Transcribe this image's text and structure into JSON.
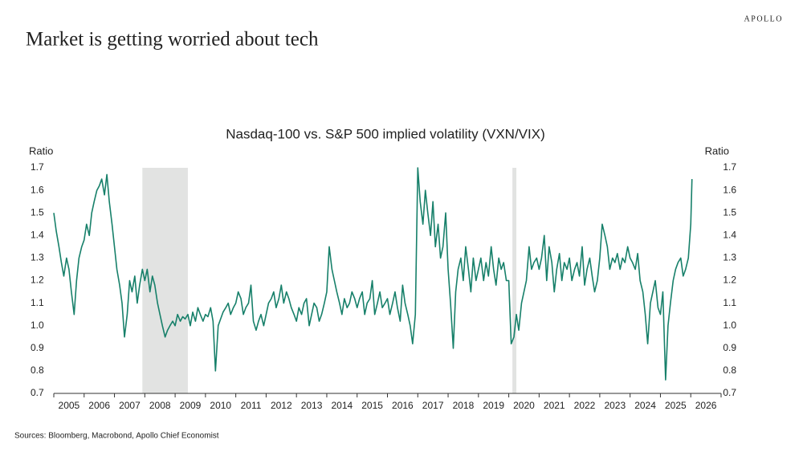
{
  "brand": "APOLLO",
  "headline": "Market is getting worried about tech",
  "source": "Sources: Bloomberg, Macrobond, Apollo Chief Economist",
  "chart_data": {
    "type": "line",
    "title": "Nasdaq-100 vs. S&P 500 implied volatility (VXN/VIX)",
    "y_label": "Ratio",
    "y2_label": "Ratio",
    "color": "#17806a",
    "grid": false,
    "xlim": [
      2005,
      2027
    ],
    "xticks": [
      2005,
      2006,
      2007,
      2008,
      2009,
      2010,
      2011,
      2012,
      2013,
      2014,
      2015,
      2016,
      2017,
      2018,
      2019,
      2020,
      2021,
      2022,
      2023,
      2024,
      2025,
      2026
    ],
    "ylim": [
      0.7,
      1.7
    ],
    "yticks": [
      0.7,
      0.8,
      0.9,
      {
        "value": 1,
        "label": "1.0"
      },
      1.1,
      1.2,
      1.3,
      1.4,
      1.5,
      1.6,
      1.7
    ],
    "y2lim": [
      0.7,
      1.7
    ],
    "y2ticks": [
      0.7,
      0.8,
      0.9,
      {
        "value": 1,
        "label": "1.0"
      },
      1.1,
      1.2,
      1.3,
      1.4,
      1.5,
      1.6,
      1.7
    ],
    "shaded": [
      [
        2007.92,
        2009.42
      ],
      [
        2020.12,
        2020.25
      ]
    ],
    "shaded_color": "#e2e3e2",
    "x": [
      2005.0,
      2005.08,
      2005.17,
      2005.25,
      2005.33,
      2005.42,
      2005.5,
      2005.58,
      2005.67,
      2005.75,
      2005.83,
      2005.92,
      2006.0,
      2006.08,
      2006.17,
      2006.25,
      2006.33,
      2006.42,
      2006.5,
      2006.58,
      2006.67,
      2006.75,
      2006.83,
      2006.92,
      2007.0,
      2007.08,
      2007.17,
      2007.25,
      2007.33,
      2007.42,
      2007.5,
      2007.58,
      2007.67,
      2007.75,
      2007.83,
      2007.92,
      2008.0,
      2008.08,
      2008.17,
      2008.25,
      2008.33,
      2008.42,
      2008.5,
      2008.58,
      2008.67,
      2008.75,
      2008.83,
      2008.92,
      2009.0,
      2009.08,
      2009.17,
      2009.25,
      2009.33,
      2009.42,
      2009.5,
      2009.58,
      2009.67,
      2009.75,
      2009.83,
      2009.92,
      2010.0,
      2010.08,
      2010.17,
      2010.25,
      2010.33,
      2010.42,
      2010.5,
      2010.58,
      2010.67,
      2010.75,
      2010.83,
      2010.92,
      2011.0,
      2011.08,
      2011.17,
      2011.25,
      2011.33,
      2011.42,
      2011.5,
      2011.58,
      2011.67,
      2011.75,
      2011.83,
      2011.92,
      2012.0,
      2012.08,
      2012.17,
      2012.25,
      2012.33,
      2012.42,
      2012.5,
      2012.58,
      2012.67,
      2012.75,
      2012.83,
      2012.92,
      2013.0,
      2013.08,
      2013.17,
      2013.25,
      2013.33,
      2013.42,
      2013.5,
      2013.58,
      2013.67,
      2013.75,
      2013.83,
      2013.92,
      2014.0,
      2014.08,
      2014.17,
      2014.25,
      2014.33,
      2014.42,
      2014.5,
      2014.58,
      2014.67,
      2014.75,
      2014.83,
      2014.92,
      2015.0,
      2015.08,
      2015.17,
      2015.25,
      2015.33,
      2015.42,
      2015.5,
      2015.58,
      2015.67,
      2015.75,
      2015.83,
      2015.92,
      2016.0,
      2016.08,
      2016.17,
      2016.25,
      2016.33,
      2016.42,
      2016.5,
      2016.58,
      2016.67,
      2016.75,
      2016.83,
      2016.92,
      2017.0,
      2017.08,
      2017.17,
      2017.25,
      2017.33,
      2017.42,
      2017.5,
      2017.58,
      2017.67,
      2017.75,
      2017.83,
      2017.92,
      2018.0,
      2018.08,
      2018.17,
      2018.25,
      2018.33,
      2018.42,
      2018.5,
      2018.58,
      2018.67,
      2018.75,
      2018.83,
      2018.92,
      2019.0,
      2019.08,
      2019.17,
      2019.25,
      2019.33,
      2019.42,
      2019.5,
      2019.58,
      2019.67,
      2019.75,
      2019.83,
      2019.92,
      2020.0,
      2020.08,
      2020.17,
      2020.25,
      2020.33,
      2020.42,
      2020.5,
      2020.58,
      2020.67,
      2020.75,
      2020.83,
      2020.92,
      2021.0,
      2021.08,
      2021.17,
      2021.25,
      2021.33,
      2021.42,
      2021.5,
      2021.58,
      2021.67,
      2021.75,
      2021.83,
      2021.92,
      2022.0,
      2022.08,
      2022.17,
      2022.25,
      2022.33,
      2022.42,
      2022.5,
      2022.58,
      2022.67,
      2022.75,
      2022.83,
      2022.92,
      2023.0,
      2023.08,
      2023.17,
      2023.25,
      2023.33,
      2023.42,
      2023.5,
      2023.58,
      2023.67,
      2023.75,
      2023.83,
      2023.92,
      2024.0,
      2024.08,
      2024.17,
      2024.25,
      2024.33,
      2024.42,
      2024.5,
      2024.58,
      2024.67,
      2024.75,
      2024.83,
      2024.92,
      2025.0,
      2025.08,
      2025.17,
      2025.25,
      2025.33,
      2025.42,
      2025.5,
      2025.58,
      2025.67,
      2025.75,
      2025.83,
      2025.92,
      2026.0,
      2026.04
    ],
    "values": [
      1.5,
      1.42,
      1.35,
      1.28,
      1.22,
      1.3,
      1.25,
      1.15,
      1.05,
      1.2,
      1.3,
      1.35,
      1.38,
      1.45,
      1.4,
      1.5,
      1.55,
      1.6,
      1.62,
      1.65,
      1.58,
      1.67,
      1.55,
      1.45,
      1.35,
      1.25,
      1.18,
      1.1,
      0.95,
      1.05,
      1.2,
      1.15,
      1.22,
      1.1,
      1.18,
      1.25,
      1.2,
      1.25,
      1.15,
      1.22,
      1.18,
      1.1,
      1.05,
      1.0,
      0.95,
      0.98,
      1.0,
      1.02,
      1.0,
      1.05,
      1.02,
      1.04,
      1.03,
      1.05,
      1.0,
      1.06,
      1.02,
      1.08,
      1.05,
      1.02,
      1.05,
      1.04,
      1.08,
      1.02,
      0.8,
      1.0,
      1.03,
      1.06,
      1.08,
      1.1,
      1.05,
      1.08,
      1.1,
      1.15,
      1.12,
      1.05,
      1.08,
      1.1,
      1.18,
      1.02,
      0.98,
      1.02,
      1.05,
      1.0,
      1.05,
      1.1,
      1.12,
      1.15,
      1.08,
      1.12,
      1.18,
      1.1,
      1.15,
      1.12,
      1.08,
      1.05,
      1.02,
      1.08,
      1.05,
      1.1,
      1.12,
      1.0,
      1.05,
      1.1,
      1.08,
      1.02,
      1.05,
      1.1,
      1.15,
      1.35,
      1.25,
      1.2,
      1.15,
      1.1,
      1.05,
      1.12,
      1.08,
      1.1,
      1.15,
      1.12,
      1.08,
      1.12,
      1.15,
      1.05,
      1.1,
      1.12,
      1.2,
      1.05,
      1.1,
      1.15,
      1.08,
      1.1,
      1.12,
      1.05,
      1.1,
      1.15,
      1.08,
      1.02,
      1.18,
      1.1,
      1.05,
      1.0,
      0.92,
      1.05,
      1.7,
      1.55,
      1.45,
      1.6,
      1.5,
      1.4,
      1.55,
      1.35,
      1.45,
      1.3,
      1.35,
      1.5,
      1.25,
      1.1,
      0.9,
      1.15,
      1.25,
      1.3,
      1.2,
      1.35,
      1.25,
      1.15,
      1.3,
      1.2,
      1.25,
      1.3,
      1.2,
      1.28,
      1.22,
      1.35,
      1.25,
      1.18,
      1.3,
      1.25,
      1.28,
      1.2,
      1.2,
      0.92,
      0.95,
      1.05,
      0.98,
      1.1,
      1.15,
      1.2,
      1.35,
      1.25,
      1.28,
      1.3,
      1.25,
      1.3,
      1.4,
      1.2,
      1.35,
      1.28,
      1.15,
      1.25,
      1.32,
      1.2,
      1.28,
      1.25,
      1.3,
      1.2,
      1.25,
      1.28,
      1.22,
      1.35,
      1.18,
      1.25,
      1.3,
      1.22,
      1.15,
      1.2,
      1.3,
      1.45,
      1.4,
      1.35,
      1.25,
      1.3,
      1.28,
      1.32,
      1.25,
      1.3,
      1.28,
      1.35,
      1.3,
      1.28,
      1.25,
      1.32,
      1.2,
      1.15,
      1.05,
      0.92,
      1.1,
      1.15,
      1.2,
      1.08,
      1.05,
      1.15,
      0.76,
      1.0,
      1.1,
      1.2,
      1.25,
      1.28,
      1.3,
      1.22,
      1.25,
      1.3,
      1.45,
      1.65
    ]
  }
}
